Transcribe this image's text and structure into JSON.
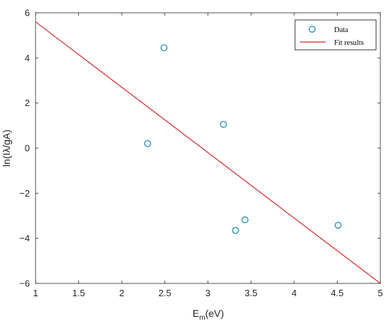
{
  "chart_data": {
    "type": "scatter",
    "xlim": [
      1,
      5
    ],
    "ylim": [
      -6,
      6
    ],
    "xticks": [
      1,
      1.5,
      2,
      2.5,
      3,
      3.5,
      4,
      4.5,
      5
    ],
    "yticks": [
      -6,
      -4,
      -2,
      0,
      2,
      4,
      6
    ],
    "xtick_labels": [
      "1",
      "1.5",
      "2",
      "2.5",
      "3",
      "3.5",
      "4",
      "4.5",
      "5"
    ],
    "ytick_labels": [
      "−6",
      "−4",
      "−2",
      "0",
      "2",
      "4",
      "6"
    ],
    "xlabel_main": "E",
    "xlabel_sub": "m",
    "xlabel_rest": "(eV)",
    "ylabel": "ln(Iλ/gA)",
    "grid": false,
    "legend_position": "top-right",
    "series": [
      {
        "name": "Data",
        "kind": "scatter",
        "marker": "circle",
        "color": "#1f8fb4",
        "x": [
          2.3,
          2.49,
          3.18,
          3.32,
          3.43,
          4.51
        ],
        "y": [
          0.2,
          4.45,
          1.05,
          -3.65,
          -3.18,
          -3.42
        ]
      },
      {
        "name": "Fit results",
        "kind": "line",
        "color": "#d62728",
        "x": [
          1,
          5
        ],
        "y": [
          5.6,
          -6.0
        ]
      }
    ]
  }
}
